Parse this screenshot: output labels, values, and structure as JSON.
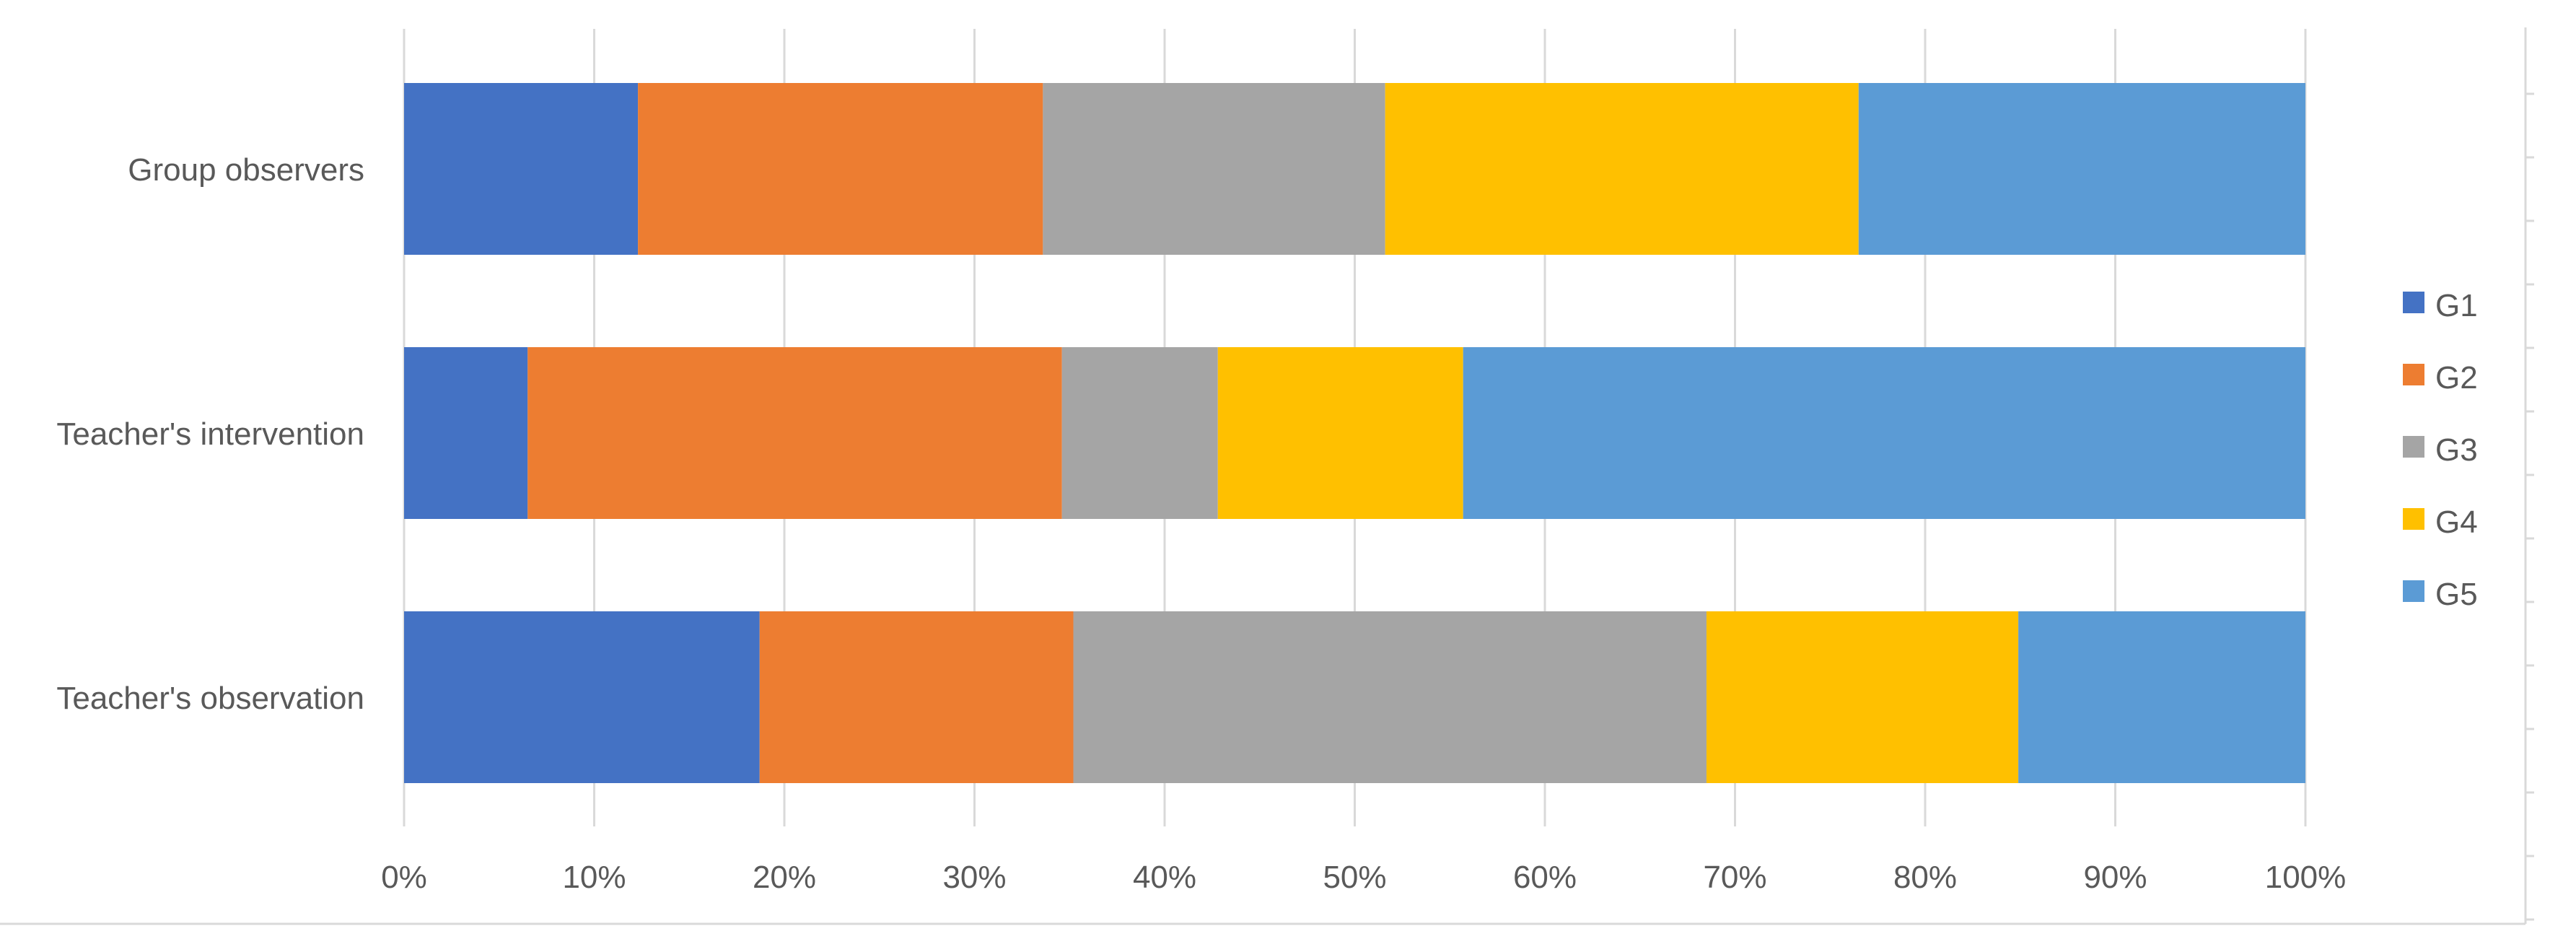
{
  "chart_data": {
    "type": "bar",
    "orientation": "horizontal",
    "stacking": "percent",
    "categories": [
      "Group observers",
      "Teacher's intervention",
      "Teacher's observation"
    ],
    "series": [
      {
        "name": "G1",
        "color": "#4472C4",
        "values": [
          12.3,
          6.5,
          18.7
        ]
      },
      {
        "name": "G2",
        "color": "#ED7D31",
        "values": [
          21.3,
          28.1,
          16.5
        ]
      },
      {
        "name": "G3",
        "color": "#A5A5A5",
        "values": [
          18.0,
          8.2,
          33.3
        ]
      },
      {
        "name": "G4",
        "color": "#FFC000",
        "values": [
          24.9,
          12.9,
          16.4
        ]
      },
      {
        "name": "G5",
        "color": "#5B9BD5",
        "values": [
          23.5,
          44.3,
          15.1
        ]
      }
    ],
    "xlim": [
      0,
      100
    ],
    "x_ticks": [
      "0%",
      "10%",
      "20%",
      "30%",
      "40%",
      "50%",
      "60%",
      "70%",
      "80%",
      "90%",
      "100%"
    ],
    "grid": "vertical",
    "legend_position": "right",
    "title": "",
    "xlabel": "",
    "ylabel": ""
  }
}
